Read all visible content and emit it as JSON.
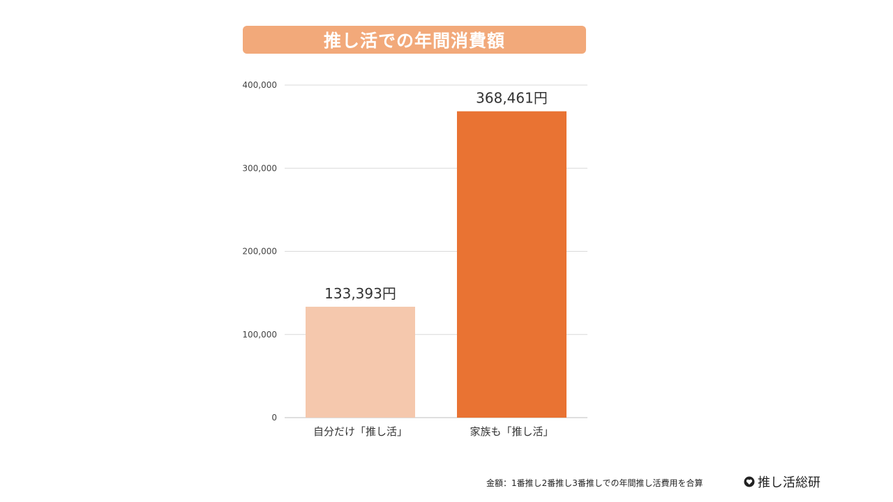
{
  "title": "推し活での年間消費額",
  "colors": {
    "title_bg": "#F2A97A",
    "bar_light": "#F5C8AD",
    "bar_dark": "#E97333",
    "grid": "#D9D9D9"
  },
  "chart_data": {
    "type": "bar",
    "categories": [
      "自分だけ「推し活」",
      "家族も「推し活」"
    ],
    "values": [
      133393,
      368461
    ],
    "data_labels": [
      "133,393円",
      "368,461円"
    ],
    "bar_colors": [
      "#F5C8AD",
      "#E97333"
    ],
    "ylim": [
      0,
      400000
    ],
    "yticks": [
      0,
      100000,
      200000,
      300000,
      400000
    ],
    "ytick_labels": [
      "0",
      "100,000",
      "200,000",
      "300,000",
      "400,000"
    ],
    "grid": true
  },
  "footer": {
    "note": "金額：1番推し2番推し3番推しでの年間推し活費用を合算",
    "logo_text": "推し活総研",
    "logo_icon": "heart-icon"
  }
}
